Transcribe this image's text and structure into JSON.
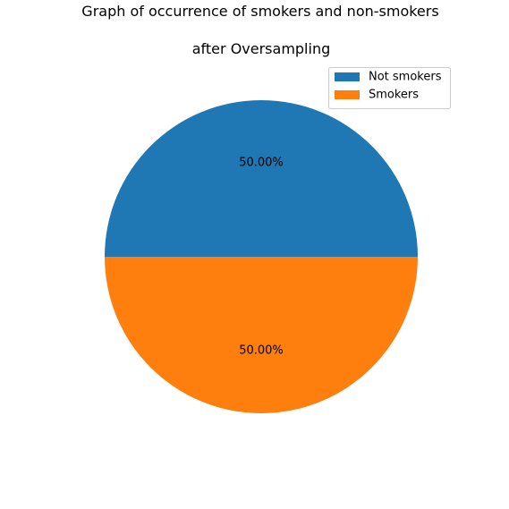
{
  "chart_data": {
    "type": "pie",
    "title": "Graph of occurrence of smokers and non-smokers",
    "subtitle": "after Oversampling",
    "categories": [
      "Not smokers",
      "Smokers"
    ],
    "values": [
      50.0,
      50.0
    ],
    "labels": [
      "50.00%",
      "50.00%"
    ],
    "colors": [
      "#1f77b4",
      "#ff7f0e"
    ],
    "legend_position": "top-right"
  }
}
